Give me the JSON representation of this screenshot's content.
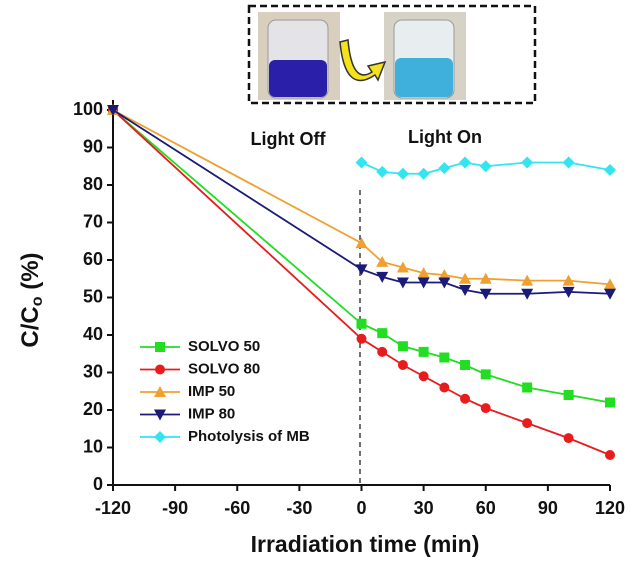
{
  "chart_data": {
    "type": "line",
    "xlabel": "Irradiation time (min)",
    "ylabel": [
      "C/C",
      "o",
      " (%)"
    ],
    "annotations": [
      "Light Off",
      "Light On"
    ],
    "xlim": [
      -120,
      120
    ],
    "xticks": [
      -120,
      -90,
      -60,
      -30,
      0,
      30,
      60,
      90,
      120
    ],
    "ylim": [
      0,
      100
    ],
    "yticks": [
      0,
      10,
      20,
      30,
      40,
      50,
      60,
      70,
      80,
      90,
      100
    ],
    "legend": "lower left",
    "series": [
      {
        "name": "SOLVO 50",
        "color": "#22dd22",
        "marker": "square",
        "x": [
          -120,
          0,
          10,
          20,
          30,
          40,
          50,
          60,
          80,
          100,
          120
        ],
        "values": [
          100,
          43,
          40.5,
          37,
          35.5,
          34,
          32,
          29.5,
          26,
          24,
          22
        ]
      },
      {
        "name": "SOLVO 80",
        "color": "#e81c1c",
        "marker": "circle",
        "x": [
          -120,
          0,
          10,
          20,
          30,
          40,
          50,
          60,
          80,
          100,
          120
        ],
        "values": [
          100,
          39,
          35.5,
          32,
          29,
          26,
          23,
          20.5,
          16.5,
          12.5,
          8
        ]
      },
      {
        "name": "IMP 50",
        "color": "#f0a030",
        "marker": "triangle-up",
        "x": [
          -120,
          0,
          10,
          20,
          30,
          40,
          50,
          60,
          80,
          100,
          120
        ],
        "values": [
          100,
          64.5,
          59.5,
          58,
          56.5,
          56,
          55,
          55,
          54.5,
          54.5,
          53.5
        ]
      },
      {
        "name": "IMP 80",
        "color": "#1a1a7a",
        "marker": "triangle-down",
        "x": [
          -120,
          0,
          10,
          20,
          30,
          40,
          50,
          60,
          80,
          100,
          120
        ],
        "values": [
          100,
          57.5,
          55.5,
          54,
          54,
          54,
          52,
          51,
          51,
          51.5,
          51
        ]
      },
      {
        "name": "Photolysis of MB",
        "color": "#33e5f0",
        "marker": "diamond",
        "x": [
          0,
          10,
          20,
          30,
          40,
          50,
          60,
          80,
          100,
          120
        ],
        "values": [
          86,
          83.5,
          83,
          83,
          84.5,
          86,
          85,
          86,
          86,
          84
        ]
      }
    ]
  }
}
